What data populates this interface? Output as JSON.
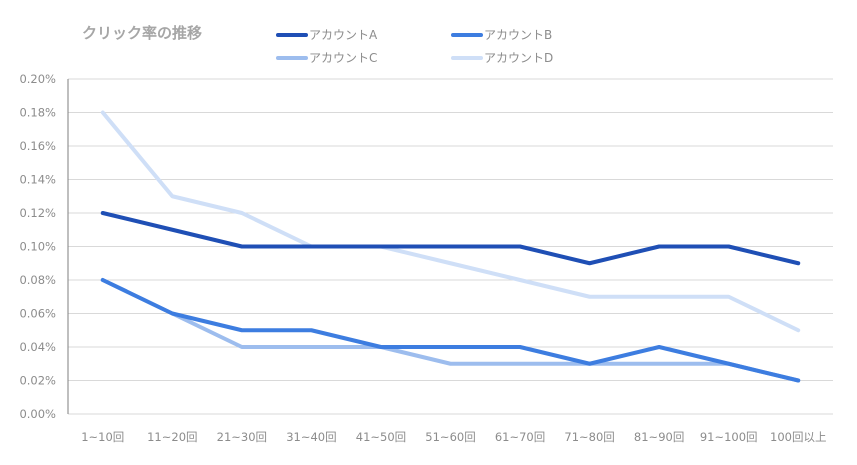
{
  "chart_data": {
    "type": "line",
    "title": "クリック率の推移",
    "categories": [
      "1~10回",
      "11~20回",
      "21~30回",
      "31~40回",
      "41~50回",
      "51~60回",
      "61~70回",
      "71~80回",
      "81~90回",
      "91~100回",
      "100回以上"
    ],
    "ylim": [
      0,
      0.2
    ],
    "yticks": [
      "0.00%",
      "0.02%",
      "0.04%",
      "0.06%",
      "0.08%",
      "0.10%",
      "0.12%",
      "0.14%",
      "0.16%",
      "0.18%",
      "0.20%"
    ],
    "grid": true,
    "legend_position": "top",
    "series": [
      {
        "name": "アカウントA",
        "color": "#1f4fb5",
        "values": [
          0.12,
          0.11,
          0.1,
          0.1,
          0.1,
          0.1,
          0.1,
          0.09,
          0.1,
          0.1,
          0.09
        ]
      },
      {
        "name": "アカウントB",
        "color": "#3d7de0",
        "values": [
          0.08,
          0.06,
          0.05,
          0.05,
          0.04,
          0.04,
          0.04,
          0.03,
          0.04,
          0.03,
          0.02
        ]
      },
      {
        "name": "アカウントC",
        "color": "#9dbdee",
        "values": [
          0.08,
          0.06,
          0.04,
          0.04,
          0.04,
          0.03,
          0.03,
          0.03,
          0.03,
          0.03,
          0.02
        ]
      },
      {
        "name": "アカウントD",
        "color": "#cfdff7",
        "values": [
          0.18,
          0.13,
          0.12,
          0.1,
          0.1,
          0.09,
          0.08,
          0.07,
          0.07,
          0.07,
          0.05
        ]
      }
    ]
  }
}
